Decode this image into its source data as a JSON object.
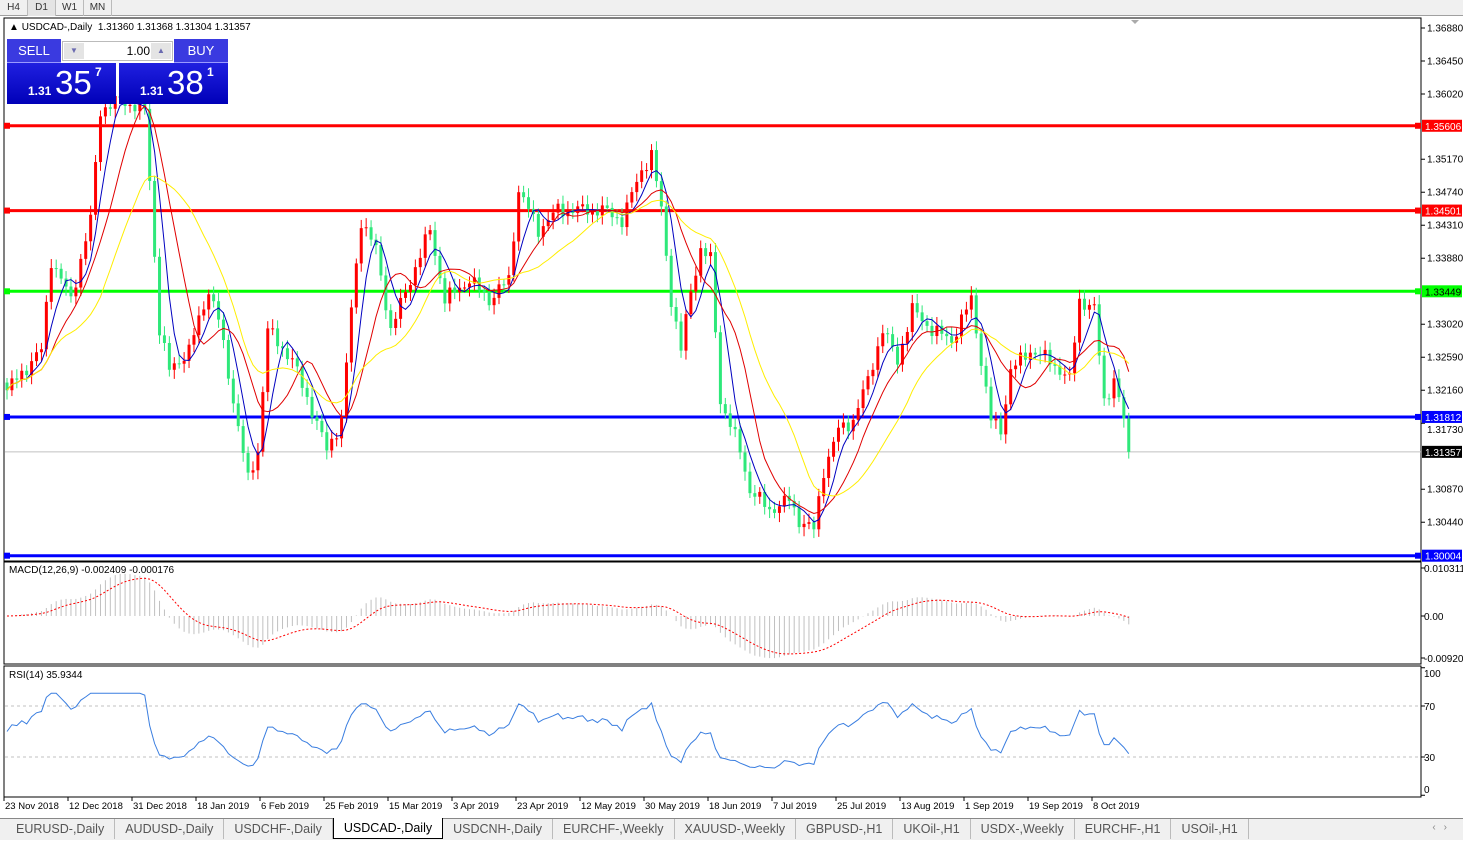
{
  "timeframes": [
    "H4",
    "D1",
    "W1",
    "MN"
  ],
  "active_timeframe": "D1",
  "chart": {
    "title": "USDCAD-,Daily",
    "ohlc": "1.31360 1.31368 1.31304 1.31357",
    "price_axis": [
      "1.36880",
      "1.36450",
      "1.36020",
      "1.35170",
      "1.34740",
      "1.34310",
      "1.33880",
      "1.33020",
      "1.32590",
      "1.32160",
      "1.31730",
      "1.30870",
      "1.30440"
    ],
    "current_price": "1.31357",
    "levels": [
      {
        "price": "1.35606",
        "color": "#ff0000"
      },
      {
        "price": "1.34501",
        "color": "#ff0000"
      },
      {
        "price": "1.33449",
        "color": "#00ff00"
      },
      {
        "price": "1.31812",
        "color": "#0000ff"
      },
      {
        "price": "1.30004",
        "color": "#0000ff"
      }
    ],
    "candle_colors": {
      "up": "#ff0000",
      "down": "#2ee87a"
    },
    "ma_colors": [
      "#0000c0",
      "#e00000",
      "#ffee00"
    ],
    "price_path": [
      [
        0,
        1.3216
      ],
      [
        7,
        1.3268
      ],
      [
        9,
        1.3386
      ],
      [
        13,
        1.3334
      ],
      [
        17,
        1.3438
      ],
      [
        19,
        1.3581
      ],
      [
        23,
        1.3594
      ],
      [
        28,
        1.3581
      ],
      [
        29,
        1.349
      ],
      [
        31,
        1.3295
      ],
      [
        33,
        1.3242
      ],
      [
        37,
        1.3268
      ],
      [
        41,
        1.3347
      ],
      [
        43,
        1.3308
      ],
      [
        46,
        1.3203
      ],
      [
        49,
        1.3099
      ],
      [
        51,
        1.3138
      ],
      [
        53,
        1.3295
      ],
      [
        58,
        1.3255
      ],
      [
        62,
        1.319
      ],
      [
        65,
        1.3138
      ],
      [
        68,
        1.3177
      ],
      [
        70,
        1.3321
      ],
      [
        72,
        1.3438
      ],
      [
        75,
        1.3399
      ],
      [
        78,
        1.3295
      ],
      [
        82,
        1.336
      ],
      [
        86,
        1.3425
      ],
      [
        89,
        1.3334
      ],
      [
        94,
        1.336
      ],
      [
        98,
        1.3334
      ],
      [
        102,
        1.336
      ],
      [
        104,
        1.3477
      ],
      [
        108,
        1.3425
      ],
      [
        112,
        1.3451
      ],
      [
        116,
        1.3451
      ],
      [
        121,
        1.3451
      ],
      [
        125,
        1.3438
      ],
      [
        129,
        1.3503
      ],
      [
        131,
        1.3523
      ],
      [
        133,
        1.3451
      ],
      [
        135,
        1.3334
      ],
      [
        137,
        1.3268
      ],
      [
        139,
        1.3347
      ],
      [
        141,
        1.3399
      ],
      [
        143,
        1.3386
      ],
      [
        145,
        1.3203
      ],
      [
        149,
        1.3138
      ],
      [
        151,
        1.3086
      ],
      [
        155,
        1.306
      ],
      [
        159,
        1.3073
      ],
      [
        161,
        1.3047
      ],
      [
        164,
        1.3034
      ],
      [
        166,
        1.3112
      ],
      [
        169,
        1.3164
      ],
      [
        172,
        1.3177
      ],
      [
        175,
        1.3229
      ],
      [
        178,
        1.3295
      ],
      [
        181,
        1.3255
      ],
      [
        184,
        1.3321
      ],
      [
        188,
        1.3295
      ],
      [
        192,
        1.3281
      ],
      [
        196,
        1.3334
      ],
      [
        198,
        1.3255
      ],
      [
        200,
        1.3177
      ],
      [
        202,
        1.3164
      ],
      [
        204,
        1.3242
      ],
      [
        208,
        1.3268
      ],
      [
        212,
        1.3255
      ],
      [
        216,
        1.3229
      ],
      [
        218,
        1.3334
      ],
      [
        221,
        1.3321
      ],
      [
        223,
        1.3203
      ],
      [
        225,
        1.3229
      ],
      [
        227,
        1.3177
      ],
      [
        228,
        1.31357
      ]
    ]
  },
  "trade_panel": {
    "sell_label": "SELL",
    "buy_label": "BUY",
    "lot": "1.00",
    "sell_prefix": "1.31",
    "sell_big": "35",
    "sell_sup": "7",
    "buy_prefix": "1.31",
    "buy_big": "38",
    "buy_sup": "1"
  },
  "macd": {
    "title": "MACD(12,26,9) -0.002409 -0.000176",
    "axis": [
      "0.010311",
      "0.00",
      "-0.009203"
    ],
    "signal_color": "#ff0000",
    "hist_color": "#c0c0c0"
  },
  "rsi": {
    "title": "RSI(14) 35.9344",
    "axis": [
      "100",
      "70",
      "30",
      "0"
    ],
    "line_color": "#3a7ee0"
  },
  "time_axis": [
    "23 Nov 2018",
    "12 Dec 2018",
    "31 Dec 2018",
    "18 Jan 2019",
    "6 Feb 2019",
    "25 Feb 2019",
    "15 Mar 2019",
    "3 Apr 2019",
    "23 Apr 2019",
    "12 May 2019",
    "30 May 2019",
    "18 Jun 2019",
    "7 Jul 2019",
    "25 Jul 2019",
    "13 Aug 2019",
    "1 Sep 2019",
    "19 Sep 2019",
    "8 Oct 2019"
  ],
  "symbol_tabs": [
    "EURUSD-,Daily",
    "AUDUSD-,Daily",
    "USDCHF-,Daily",
    "USDCAD-,Daily",
    "USDCNH-,Daily",
    "EURCHF-,Weekly",
    "XAUUSD-,Weekly",
    "GBPUSD-,H1",
    "UKOil-,H1",
    "USDX-,Weekly",
    "EURCHF-,H1",
    "USOil-,H1"
  ],
  "active_symbol_tab": "USDCAD-,Daily",
  "tab_scroll": {
    "left": "‹",
    "right": "›"
  }
}
